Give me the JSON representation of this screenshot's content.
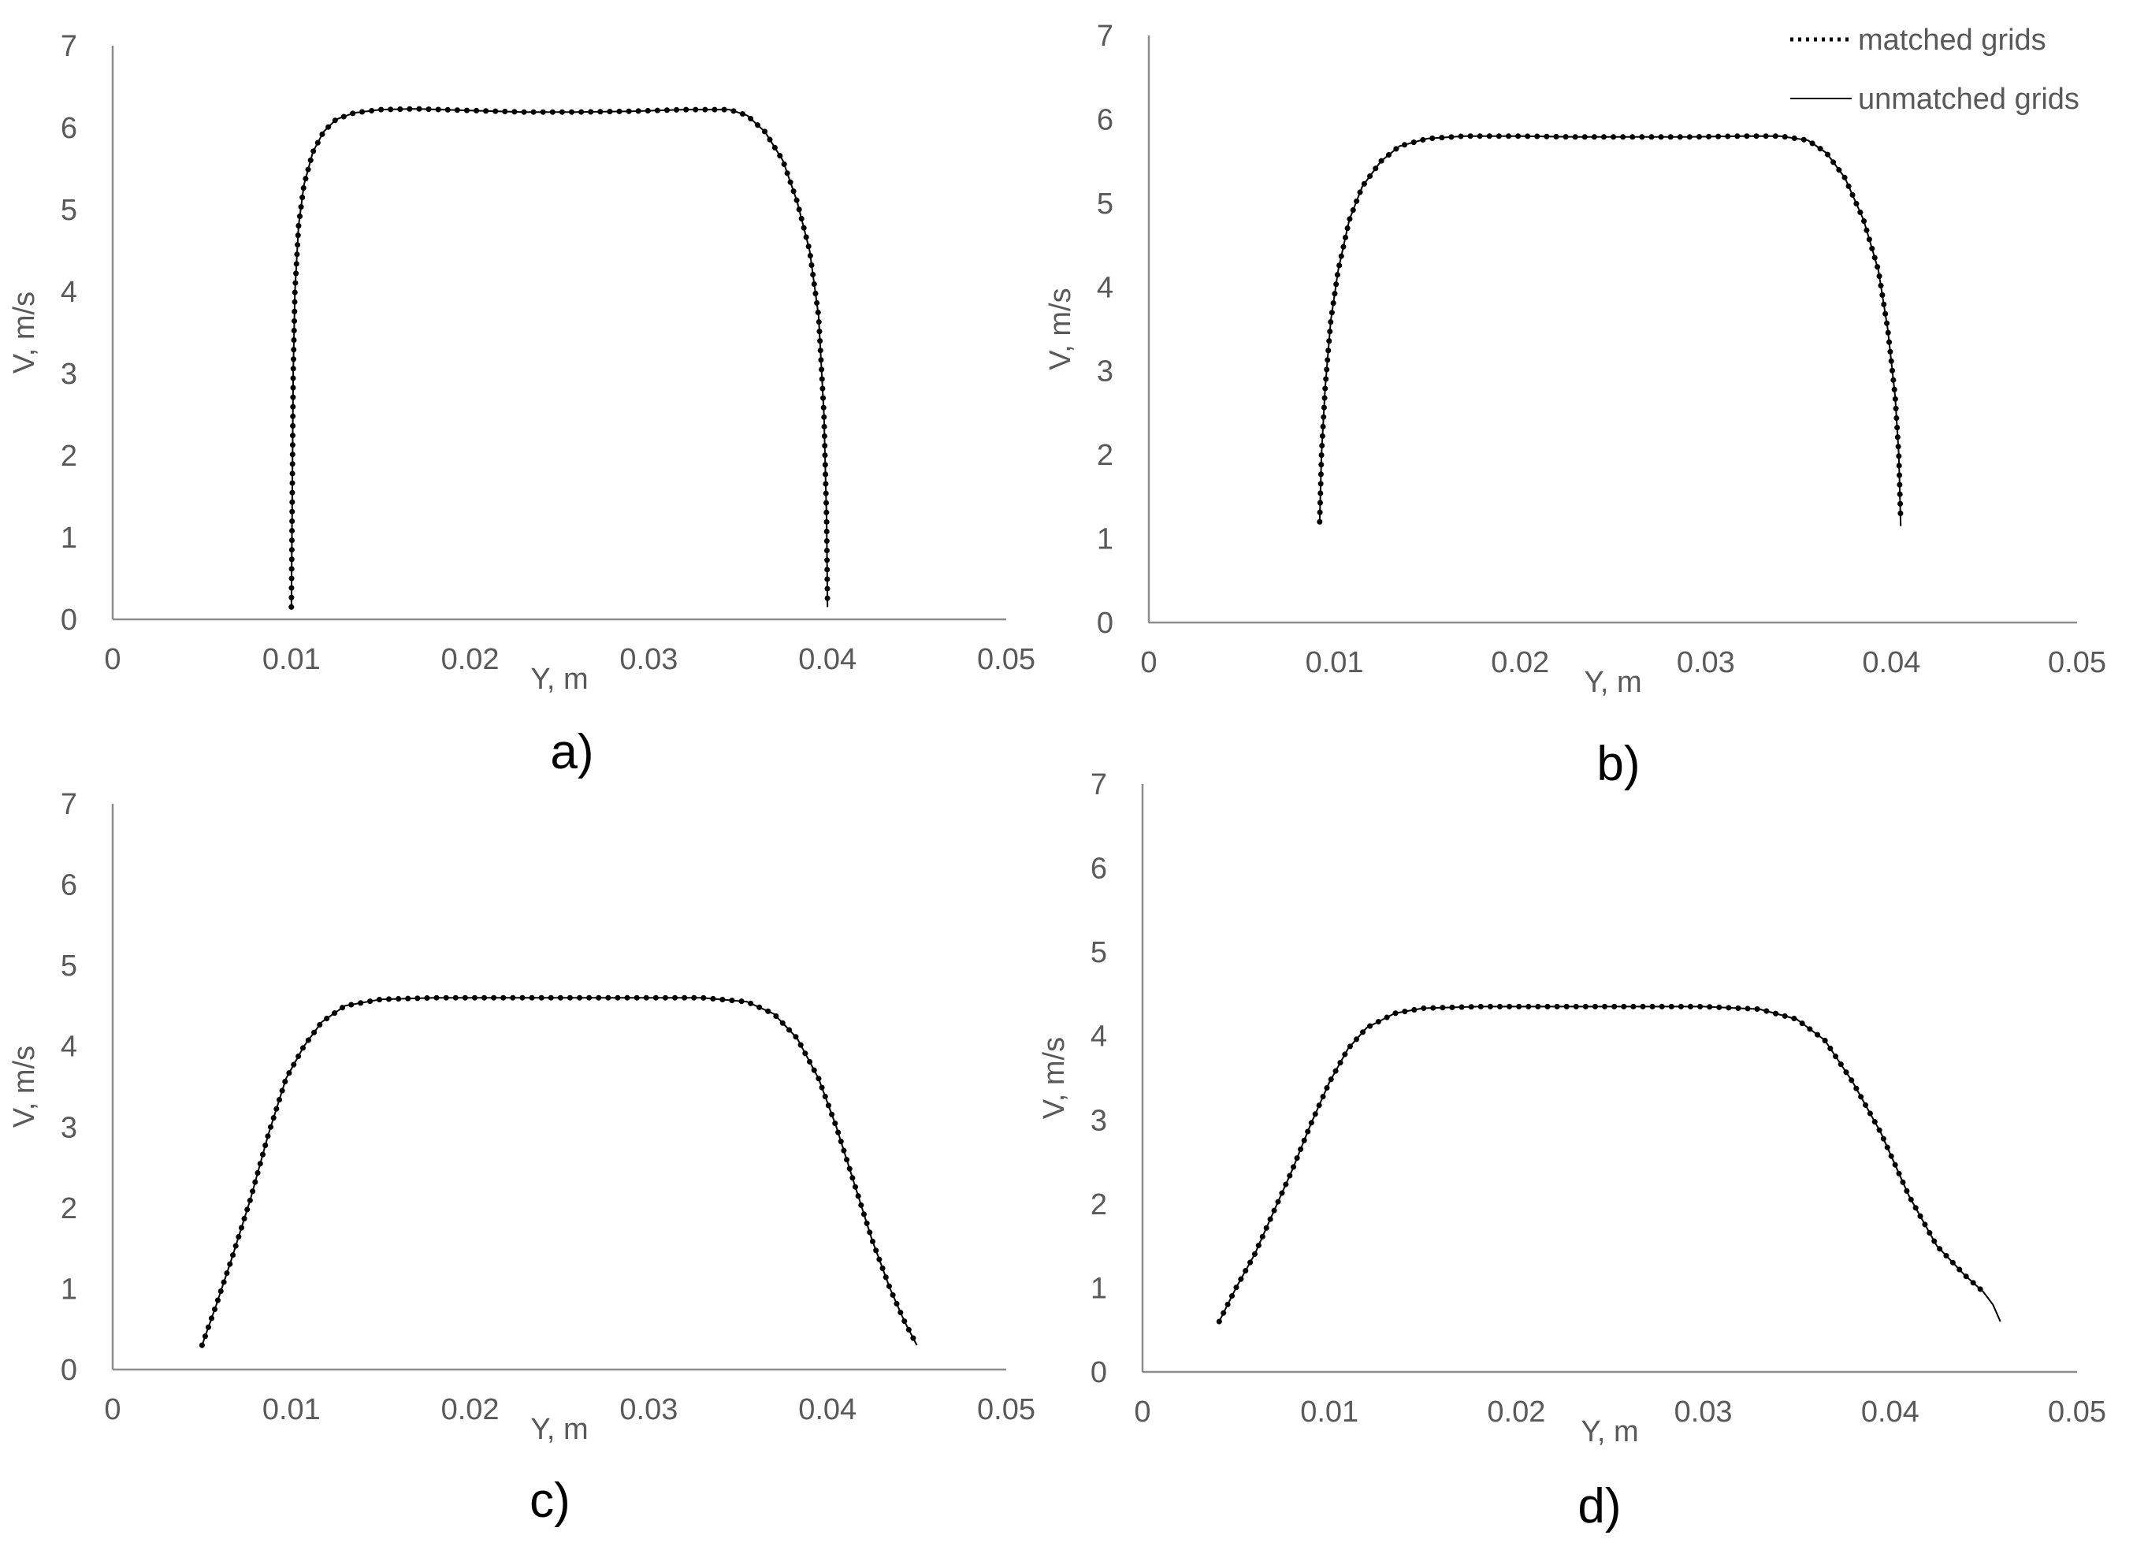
{
  "legend": {
    "matched_label": "matched grids",
    "unmatched_label": "unmatched grids",
    "colors": {
      "line": "#000000",
      "axis": "#8c8c8c",
      "text": "#595959"
    }
  },
  "chart_data": [
    {
      "type": "line",
      "panel_label": "a)",
      "xlabel": "Y, m",
      "ylabel": "V, m/s",
      "xlim": [
        0,
        0.05
      ],
      "ylim": [
        0,
        7
      ],
      "x_ticks": [
        "0",
        "0.01",
        "0.02",
        "0.03",
        "0.04",
        "0.05"
      ],
      "y_ticks": [
        "0",
        "1",
        "2",
        "3",
        "4",
        "5",
        "6",
        "7"
      ],
      "series": [
        {
          "name": "matched grids",
          "style": "dotted",
          "points": [
            [
              0.01,
              0.15
            ],
            [
              0.01005,
              1.5
            ],
            [
              0.0101,
              3.0
            ],
            [
              0.0102,
              4.0
            ],
            [
              0.0104,
              4.8
            ],
            [
              0.0107,
              5.3
            ],
            [
              0.0112,
              5.7
            ],
            [
              0.0118,
              5.95
            ],
            [
              0.0125,
              6.1
            ],
            [
              0.0135,
              6.18
            ],
            [
              0.015,
              6.22
            ],
            [
              0.017,
              6.23
            ],
            [
              0.02,
              6.21
            ],
            [
              0.023,
              6.19
            ],
            [
              0.026,
              6.19
            ],
            [
              0.029,
              6.2
            ],
            [
              0.032,
              6.22
            ],
            [
              0.0345,
              6.22
            ],
            [
              0.0355,
              6.15
            ],
            [
              0.0365,
              5.95
            ],
            [
              0.0375,
              5.6
            ],
            [
              0.0383,
              5.1
            ],
            [
              0.039,
              4.5
            ],
            [
              0.0395,
              3.7
            ],
            [
              0.0398,
              2.5
            ],
            [
              0.03995,
              1.2
            ],
            [
              0.04,
              0.15
            ]
          ]
        },
        {
          "name": "unmatched grids",
          "style": "solid",
          "points": [
            [
              0.01,
              0.15
            ],
            [
              0.01005,
              1.5
            ],
            [
              0.0101,
              3.0
            ],
            [
              0.0102,
              4.0
            ],
            [
              0.0104,
              4.8
            ],
            [
              0.0107,
              5.3
            ],
            [
              0.0112,
              5.7
            ],
            [
              0.0118,
              5.95
            ],
            [
              0.0125,
              6.1
            ],
            [
              0.0135,
              6.18
            ],
            [
              0.015,
              6.22
            ],
            [
              0.017,
              6.23
            ],
            [
              0.02,
              6.21
            ],
            [
              0.023,
              6.19
            ],
            [
              0.026,
              6.19
            ],
            [
              0.029,
              6.2
            ],
            [
              0.032,
              6.22
            ],
            [
              0.0345,
              6.22
            ],
            [
              0.0355,
              6.15
            ],
            [
              0.0365,
              5.95
            ],
            [
              0.0375,
              5.6
            ],
            [
              0.0383,
              5.1
            ],
            [
              0.039,
              4.5
            ],
            [
              0.0395,
              3.7
            ],
            [
              0.0398,
              2.5
            ],
            [
              0.03995,
              1.2
            ],
            [
              0.04,
              0.15
            ]
          ]
        }
      ]
    },
    {
      "type": "line",
      "panel_label": "b)",
      "xlabel": "Y, m",
      "ylabel": "V, m/s",
      "xlim": [
        0,
        0.05
      ],
      "ylim": [
        0,
        7
      ],
      "x_ticks": [
        "0",
        "0.01",
        "0.02",
        "0.03",
        "0.04",
        "0.05"
      ],
      "y_ticks": [
        "0",
        "1",
        "2",
        "3",
        "4",
        "5",
        "6",
        "7"
      ],
      "series": [
        {
          "name": "matched grids",
          "style": "dotted",
          "points": [
            [
              0.0092,
              1.2
            ],
            [
              0.0093,
              2.0
            ],
            [
              0.0095,
              2.8
            ],
            [
              0.0098,
              3.6
            ],
            [
              0.0102,
              4.2
            ],
            [
              0.0108,
              4.8
            ],
            [
              0.0115,
              5.2
            ],
            [
              0.0125,
              5.5
            ],
            [
              0.0135,
              5.68
            ],
            [
              0.015,
              5.77
            ],
            [
              0.017,
              5.8
            ],
            [
              0.02,
              5.8
            ],
            [
              0.023,
              5.79
            ],
            [
              0.026,
              5.79
            ],
            [
              0.029,
              5.79
            ],
            [
              0.032,
              5.8
            ],
            [
              0.034,
              5.8
            ],
            [
              0.0355,
              5.75
            ],
            [
              0.0365,
              5.6
            ],
            [
              0.0375,
              5.3
            ],
            [
              0.0385,
              4.8
            ],
            [
              0.0393,
              4.2
            ],
            [
              0.0398,
              3.5
            ],
            [
              0.0402,
              2.7
            ],
            [
              0.0404,
              2.0
            ],
            [
              0.0405,
              1.2
            ]
          ]
        },
        {
          "name": "unmatched grids",
          "style": "solid",
          "points": [
            [
              0.0092,
              1.2
            ],
            [
              0.0093,
              2.0
            ],
            [
              0.0095,
              2.8
            ],
            [
              0.0098,
              3.6
            ],
            [
              0.0102,
              4.2
            ],
            [
              0.0108,
              4.8
            ],
            [
              0.0115,
              5.2
            ],
            [
              0.0125,
              5.5
            ],
            [
              0.0135,
              5.68
            ],
            [
              0.015,
              5.77
            ],
            [
              0.017,
              5.8
            ],
            [
              0.02,
              5.8
            ],
            [
              0.023,
              5.79
            ],
            [
              0.026,
              5.79
            ],
            [
              0.029,
              5.79
            ],
            [
              0.032,
              5.8
            ],
            [
              0.034,
              5.8
            ],
            [
              0.0355,
              5.75
            ],
            [
              0.0365,
              5.6
            ],
            [
              0.0375,
              5.3
            ],
            [
              0.0385,
              4.8
            ],
            [
              0.0393,
              4.2
            ],
            [
              0.0398,
              3.5
            ],
            [
              0.0402,
              2.7
            ],
            [
              0.0404,
              2.0
            ],
            [
              0.0405,
              1.15
            ]
          ]
        }
      ]
    },
    {
      "type": "line",
      "panel_label": "c)",
      "xlabel": "Y, m",
      "ylabel": "V, m/s",
      "xlim": [
        0,
        0.05
      ],
      "ylim": [
        0,
        7
      ],
      "x_ticks": [
        "0",
        "0.01",
        "0.02",
        "0.03",
        "0.04",
        "0.05"
      ],
      "y_ticks": [
        "0",
        "1",
        "2",
        "3",
        "4",
        "5",
        "6",
        "7"
      ],
      "series": [
        {
          "name": "matched grids",
          "style": "dotted",
          "points": [
            [
              0.005,
              0.3
            ],
            [
              0.0058,
              0.8
            ],
            [
              0.0067,
              1.4
            ],
            [
              0.0077,
              2.1
            ],
            [
              0.0087,
              2.9
            ],
            [
              0.0097,
              3.6
            ],
            [
              0.0107,
              4.0
            ],
            [
              0.0117,
              4.3
            ],
            [
              0.013,
              4.5
            ],
            [
              0.015,
              4.58
            ],
            [
              0.018,
              4.6
            ],
            [
              0.022,
              4.6
            ],
            [
              0.026,
              4.6
            ],
            [
              0.03,
              4.6
            ],
            [
              0.033,
              4.6
            ],
            [
              0.0355,
              4.55
            ],
            [
              0.037,
              4.4
            ],
            [
              0.0383,
              4.1
            ],
            [
              0.0395,
              3.6
            ],
            [
              0.0405,
              3.0
            ],
            [
              0.0415,
              2.3
            ],
            [
              0.0425,
              1.6
            ],
            [
              0.0435,
              1.0
            ],
            [
              0.0443,
              0.6
            ],
            [
              0.045,
              0.3
            ]
          ]
        },
        {
          "name": "unmatched grids",
          "style": "solid",
          "points": [
            [
              0.005,
              0.3
            ],
            [
              0.0058,
              0.8
            ],
            [
              0.0067,
              1.4
            ],
            [
              0.0077,
              2.1
            ],
            [
              0.0087,
              2.9
            ],
            [
              0.0097,
              3.6
            ],
            [
              0.0107,
              4.0
            ],
            [
              0.0117,
              4.3
            ],
            [
              0.013,
              4.5
            ],
            [
              0.015,
              4.58
            ],
            [
              0.018,
              4.6
            ],
            [
              0.022,
              4.6
            ],
            [
              0.026,
              4.6
            ],
            [
              0.03,
              4.6
            ],
            [
              0.033,
              4.6
            ],
            [
              0.0355,
              4.55
            ],
            [
              0.037,
              4.4
            ],
            [
              0.0383,
              4.1
            ],
            [
              0.0395,
              3.6
            ],
            [
              0.0405,
              3.0
            ],
            [
              0.0415,
              2.3
            ],
            [
              0.0425,
              1.6
            ],
            [
              0.0435,
              1.0
            ],
            [
              0.0443,
              0.6
            ],
            [
              0.045,
              0.3
            ]
          ]
        }
      ]
    },
    {
      "type": "line",
      "panel_label": "d)",
      "xlabel": "Y, m",
      "ylabel": "V, m/s",
      "xlim": [
        0,
        0.05
      ],
      "ylim": [
        0,
        7
      ],
      "x_ticks": [
        "0",
        "0.01",
        "0.02",
        "0.03",
        "0.04",
        "0.05"
      ],
      "y_ticks": [
        "0",
        "1",
        "2",
        "3",
        "4",
        "5",
        "6",
        "7"
      ],
      "series": [
        {
          "name": "matched grids",
          "style": "dotted",
          "points": [
            [
              0.0041,
              0.6
            ],
            [
              0.005,
              1.0
            ],
            [
              0.006,
              1.4
            ],
            [
              0.007,
              1.9
            ],
            [
              0.008,
              2.4
            ],
            [
              0.009,
              2.95
            ],
            [
              0.01,
              3.45
            ],
            [
              0.011,
              3.85
            ],
            [
              0.012,
              4.1
            ],
            [
              0.0135,
              4.27
            ],
            [
              0.015,
              4.33
            ],
            [
              0.018,
              4.35
            ],
            [
              0.022,
              4.35
            ],
            [
              0.026,
              4.35
            ],
            [
              0.03,
              4.35
            ],
            [
              0.033,
              4.32
            ],
            [
              0.035,
              4.2
            ],
            [
              0.0365,
              3.95
            ],
            [
              0.038,
              3.45
            ],
            [
              0.0395,
              2.85
            ],
            [
              0.041,
              2.1
            ],
            [
              0.0425,
              1.5
            ],
            [
              0.044,
              1.15
            ],
            [
              0.045,
              0.95
            ]
          ]
        },
        {
          "name": "unmatched grids",
          "style": "solid",
          "points": [
            [
              0.0041,
              0.6
            ],
            [
              0.005,
              1.0
            ],
            [
              0.006,
              1.4
            ],
            [
              0.007,
              1.9
            ],
            [
              0.008,
              2.4
            ],
            [
              0.009,
              2.95
            ],
            [
              0.01,
              3.45
            ],
            [
              0.011,
              3.85
            ],
            [
              0.012,
              4.1
            ],
            [
              0.0135,
              4.27
            ],
            [
              0.015,
              4.33
            ],
            [
              0.018,
              4.35
            ],
            [
              0.022,
              4.35
            ],
            [
              0.026,
              4.35
            ],
            [
              0.03,
              4.35
            ],
            [
              0.033,
              4.32
            ],
            [
              0.035,
              4.2
            ],
            [
              0.0365,
              3.95
            ],
            [
              0.038,
              3.45
            ],
            [
              0.0395,
              2.85
            ],
            [
              0.041,
              2.1
            ],
            [
              0.0425,
              1.5
            ],
            [
              0.044,
              1.15
            ],
            [
              0.045,
              0.95
            ],
            [
              0.0455,
              0.8
            ],
            [
              0.0459,
              0.6
            ]
          ]
        }
      ]
    }
  ]
}
